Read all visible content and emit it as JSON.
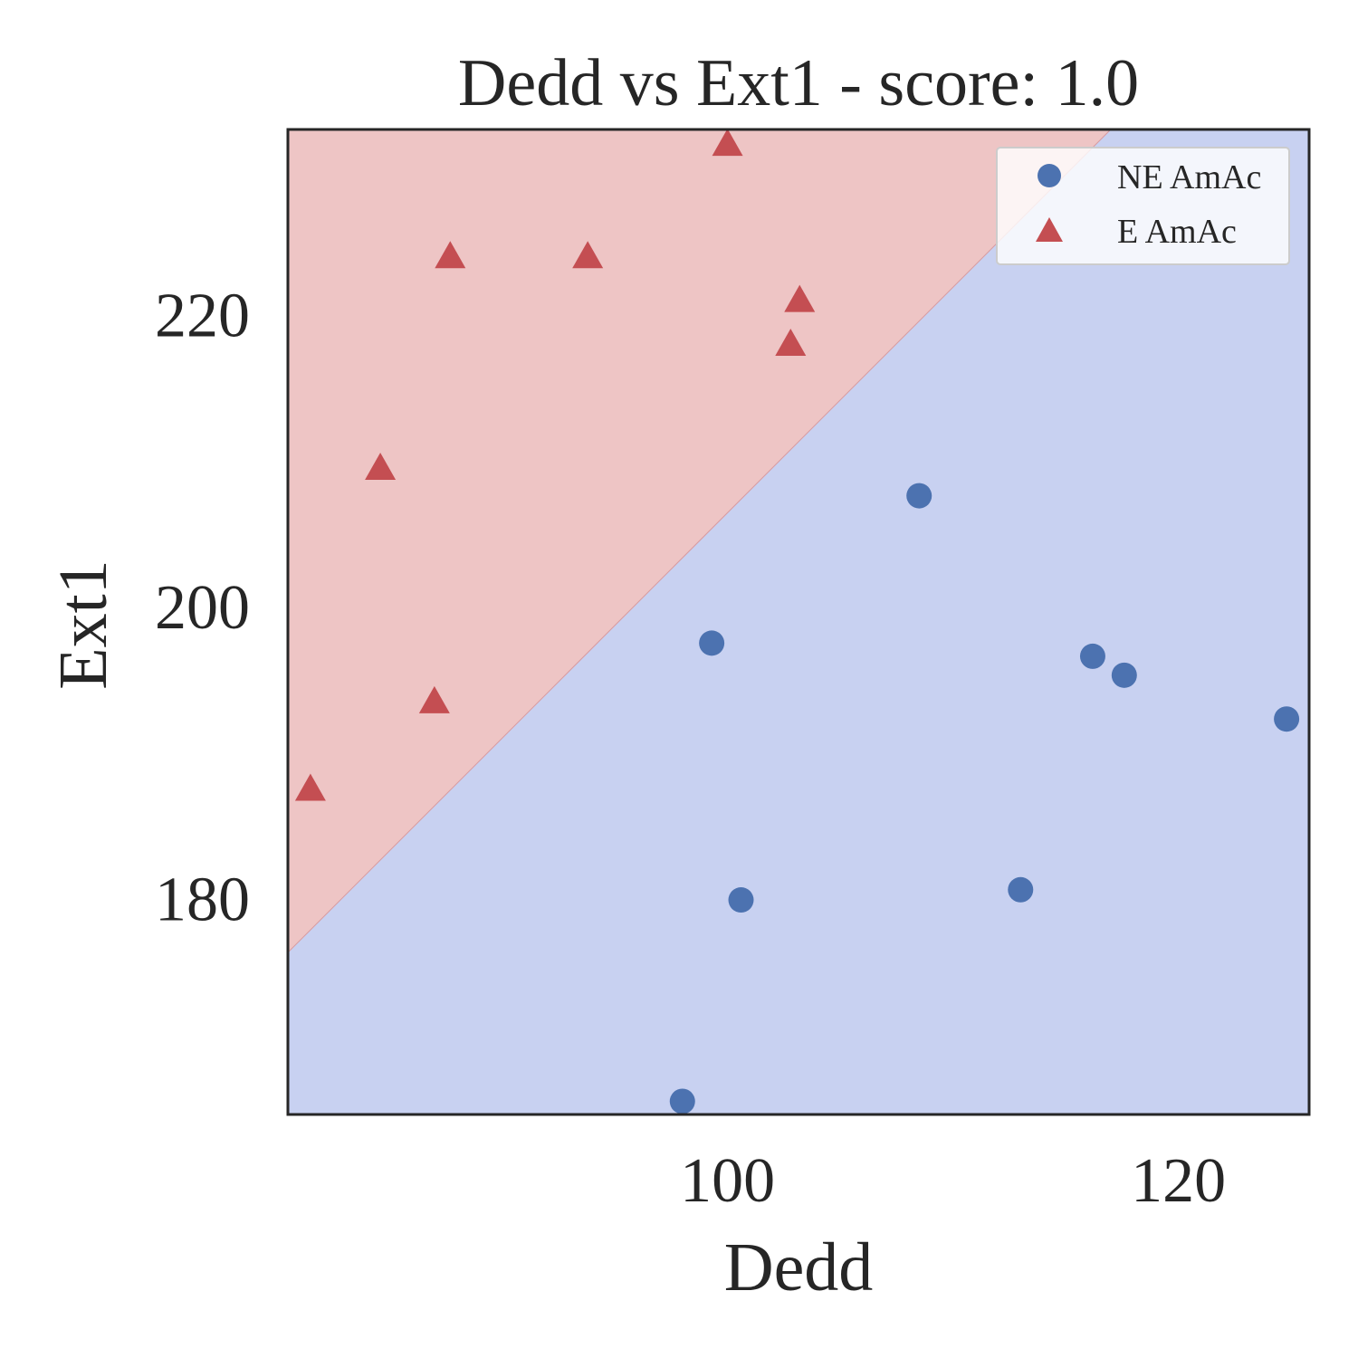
{
  "chart_data": {
    "type": "scatter",
    "title": "Dedd vs Ext1 - score: 1.0",
    "xlabel": "Dedd",
    "ylabel": "Ext1",
    "xlim": [
      80.5,
      125.8
    ],
    "ylim": [
      165.2,
      232.7
    ],
    "x_ticks": [
      100,
      120
    ],
    "y_ticks": [
      180,
      200,
      220
    ],
    "grid": false,
    "legend_position": "top-right",
    "decision_boundary": {
      "description_x": [
        80.5,
        117
      ],
      "y": [
        176.3,
        232.7
      ]
    },
    "regions": [
      {
        "label": "E AmAc",
        "color": "#eec5c5"
      },
      {
        "label": "NE AmAc",
        "color": "#c8d1f1"
      }
    ],
    "series": [
      {
        "name": "NE AmAc",
        "marker": "circle",
        "color": "#4c72b0",
        "points": [
          [
            98.0,
            166.1
          ],
          [
            99.3,
            197.5
          ],
          [
            100.6,
            179.9
          ],
          [
            108.5,
            207.6
          ],
          [
            113.0,
            180.6
          ],
          [
            116.2,
            196.6
          ],
          [
            117.6,
            195.3
          ],
          [
            124.8,
            192.3
          ]
        ]
      },
      {
        "name": "E AmAc",
        "marker": "triangle",
        "color": "#c44e52",
        "points": [
          [
            81.5,
            187.5
          ],
          [
            84.6,
            209.5
          ],
          [
            87.0,
            193.5
          ],
          [
            87.7,
            224.0
          ],
          [
            93.8,
            224.0
          ],
          [
            100.0,
            231.7
          ],
          [
            102.8,
            218.0
          ],
          [
            103.2,
            221.0
          ]
        ]
      }
    ]
  }
}
